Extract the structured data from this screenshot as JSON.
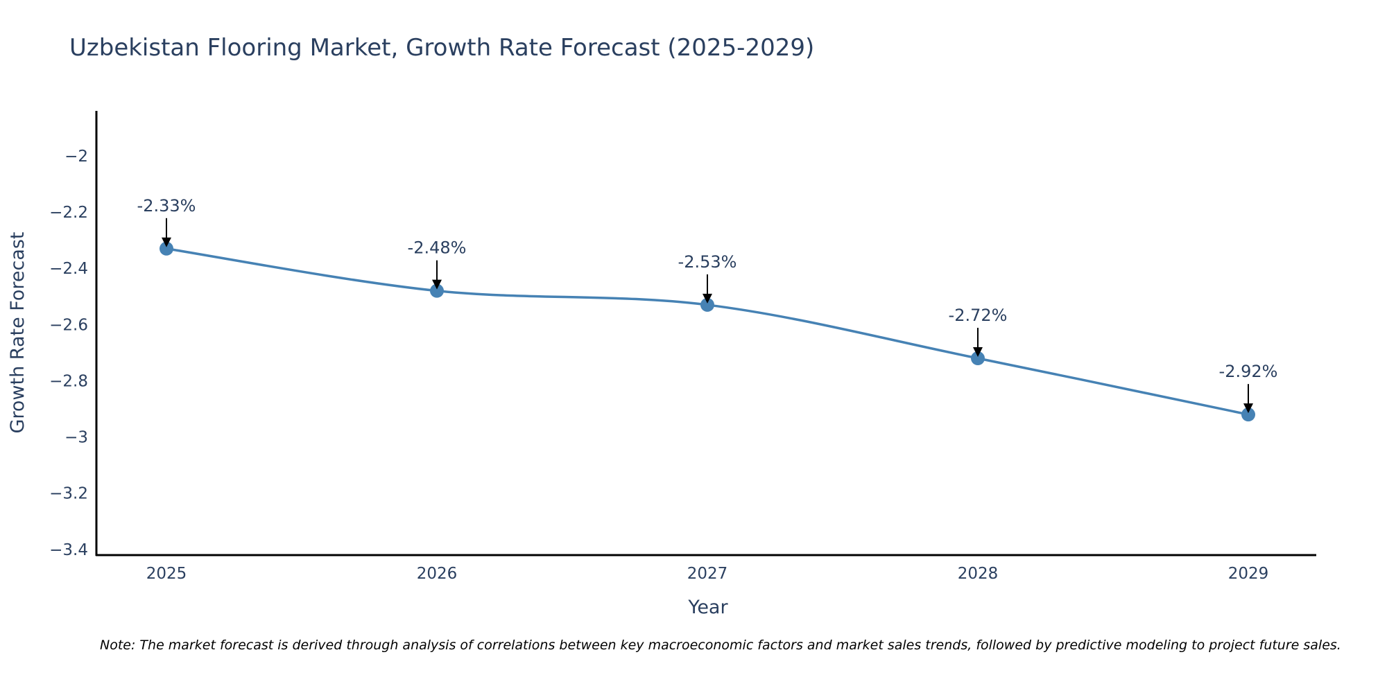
{
  "colors": {
    "series": "#4682b4",
    "text": "#2a3f5f",
    "axis": "#000000",
    "arrow": "#000000",
    "background": "#ffffff"
  },
  "chart_data": {
    "type": "line",
    "title": "Uzbekistan Flooring Market, Growth Rate Forecast (2025-2029)",
    "xlabel": "Year",
    "ylabel": "Growth Rate Forecast",
    "categories": [
      "2025",
      "2026",
      "2027",
      "2028",
      "2029"
    ],
    "series": [
      {
        "name": "Growth Rate Forecast",
        "values": [
          -2.33,
          -2.48,
          -2.53,
          -2.72,
          -2.92
        ],
        "labels": [
          "-2.33%",
          "-2.48%",
          "-2.53%",
          "-2.72%",
          "-2.92%"
        ],
        "line_shape": "spline",
        "markers": true
      }
    ],
    "ylim": [
      -3.42,
      -1.84
    ],
    "yticks": [
      -2,
      -2.2,
      -2.4,
      -2.6,
      -2.8,
      -3,
      -3.2,
      -3.4
    ],
    "ytick_labels": [
      "−2",
      "−2.2",
      "−2.4",
      "−2.6",
      "−2.8",
      "−3",
      "−3.2",
      "−3.4"
    ],
    "grid": false,
    "legend": "none"
  },
  "note": "Note: The market forecast is derived through analysis of correlations between key macroeconomic factors and market sales trends, followed by predictive modeling to project future sales."
}
